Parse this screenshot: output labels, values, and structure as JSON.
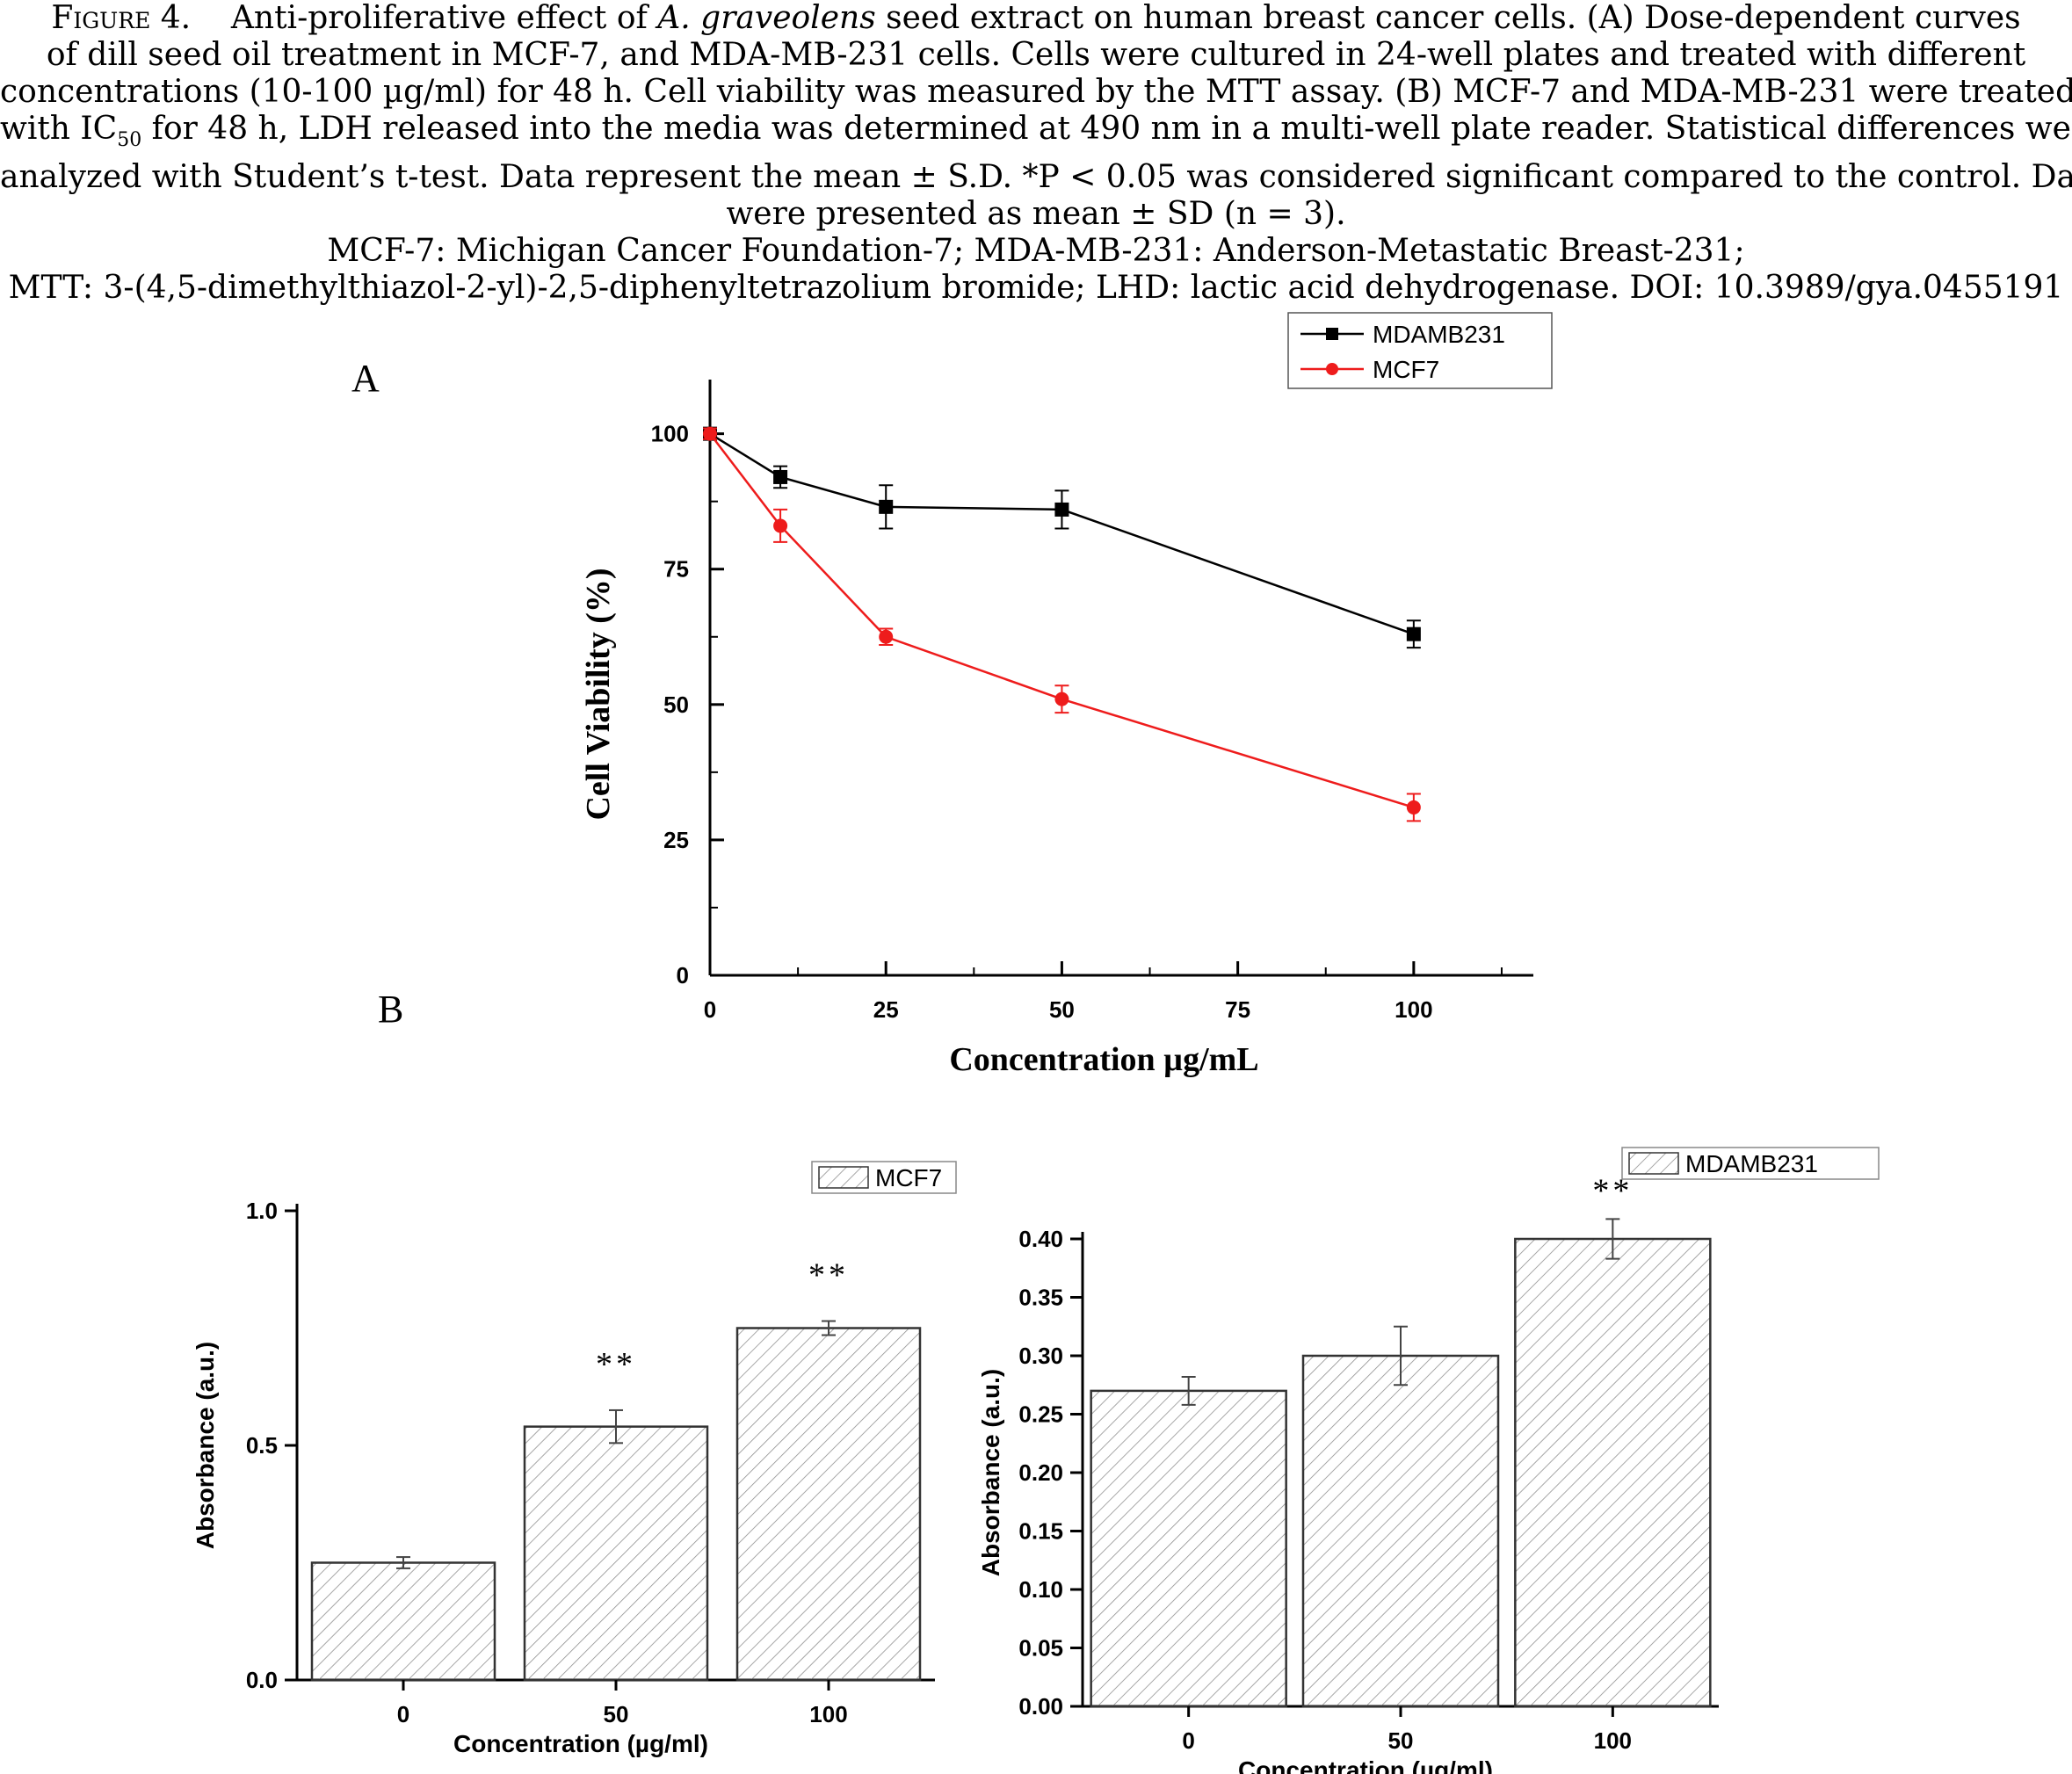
{
  "caption": {
    "figure_label": "Figure 4.",
    "line1_a": "Anti-proliferative effect of ",
    "line1_species": "A. graveolens",
    "line1_b": " seed extract on human breast cancer cells. (A) Dose-dependent curves",
    "line2": "of dill seed oil treatment in MCF-7, and MDA-MB-231 cells. Cells were cultured in 24-well plates and treated with different",
    "line3": "concentrations (10-100 µg/ml) for 48 h. Cell viability was measured by the MTT assay. (B) MCF-7 and MDA-MB-231 were treated",
    "line4_a": "with IC",
    "line4_sub": "50",
    "line4_b": " for 48 h, LDH released into the media was determined at 490 nm in a multi-well plate reader. Statistical differences were",
    "line5": "analyzed with Student’s t-test. Data represent the mean ± S.D. *P < 0.05 was considered significant compared to the control. Data",
    "line6": "were presented as mean ± SD (n = 3).",
    "line7": "MCF-7: Michigan Cancer Foundation-7; MDA-MB-231: Anderson-Metastatic Breast-231;",
    "line8": "MTT: 3-(4,5-dimethylthiazol-2-yl)-2,5-diphenyltetrazolium bromide; LHD: lactic acid dehydrogenase. DOI: 10.3989/gya.0455191"
  },
  "panel_labels": {
    "a": "A",
    "b": "B"
  },
  "colors": {
    "black": "#000000",
    "red": "#ee1c1c",
    "hatch": "#8a8a8a"
  },
  "chart_data": [
    {
      "type": "line",
      "panel": "A",
      "xlabel": "Concentration µg/mL",
      "ylabel": "Cell Viability (%)",
      "xlim": [
        0,
        117
      ],
      "ylim": [
        0,
        110
      ],
      "xticks": [
        0,
        25,
        50,
        75,
        100
      ],
      "yticks": [
        0,
        25,
        50,
        75,
        100
      ],
      "legend_position": "top-right",
      "series": [
        {
          "name": "MDAMB231",
          "marker": "square",
          "color": "#000000",
          "x": [
            0,
            10,
            25,
            50,
            100
          ],
          "y": [
            100,
            92,
            86.5,
            86,
            63
          ],
          "err": [
            1,
            2,
            4,
            3.5,
            2.5
          ]
        },
        {
          "name": "MCF7",
          "marker": "circle",
          "color": "#ee1c1c",
          "x": [
            0,
            10,
            25,
            50,
            100
          ],
          "y": [
            100,
            83,
            62.5,
            51,
            31
          ],
          "err": [
            1,
            3,
            1.5,
            2.5,
            2.5
          ]
        }
      ]
    },
    {
      "type": "bar",
      "panel": "B-left",
      "legend": "MCF7",
      "legend_position": "top-right",
      "xlabel": "Concentration  (µg/ml)",
      "ylabel": "Absorbance (a.u.)",
      "categories": [
        "0",
        "50",
        "100"
      ],
      "values": [
        0.25,
        0.54,
        0.75
      ],
      "errors": [
        0.012,
        0.035,
        0.015
      ],
      "significance": [
        "",
        "**",
        "**"
      ],
      "ylim": [
        0,
        1.0
      ],
      "yticks": [
        0.0,
        0.5,
        1.0
      ],
      "ytick_labels": [
        "0.0",
        "0.5",
        "1.0"
      ]
    },
    {
      "type": "bar",
      "panel": "B-right",
      "legend": "MDAMB231",
      "legend_position": "top-left",
      "xlabel": "Concentration  (µg/ml)",
      "ylabel": "Absorbance (a.u.)",
      "categories": [
        "0",
        "50",
        "100"
      ],
      "values": [
        0.27,
        0.3,
        0.4
      ],
      "errors": [
        0.012,
        0.025,
        0.017
      ],
      "significance": [
        "",
        "",
        "**"
      ],
      "ylim": [
        0,
        0.4
      ],
      "yticks": [
        0.0,
        0.05,
        0.1,
        0.15,
        0.2,
        0.25,
        0.3,
        0.35,
        0.4
      ],
      "ytick_labels": [
        "0.00",
        "0.05",
        "0.10",
        "0.15",
        "0.20",
        "0.25",
        "0.30",
        "0.35",
        "0.40"
      ]
    }
  ]
}
